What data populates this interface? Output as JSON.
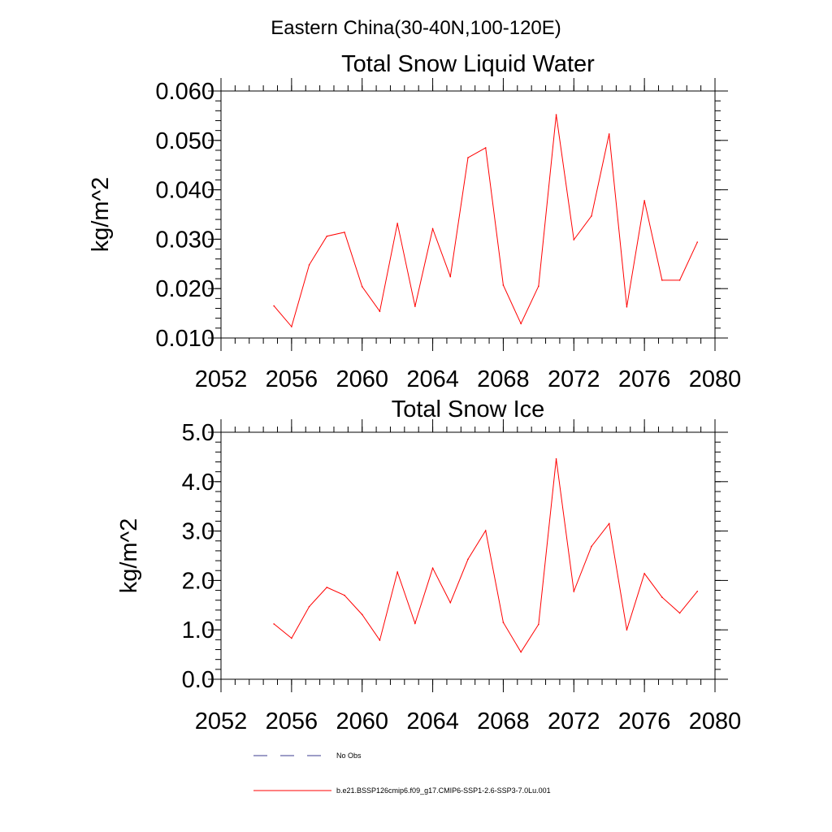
{
  "figure": {
    "main_title": "Eastern China(30-40N,100-120E)"
  },
  "colors": {
    "series_red": "#ff0000",
    "obs_blue": "#3b3b8f",
    "axis": "#000000"
  },
  "chart_data": [
    {
      "type": "line",
      "title": "Total Snow Liquid Water",
      "xlabel": "",
      "ylabel": "kg/m^2",
      "xlim": [
        2052,
        2080
      ],
      "ylim": [
        0.01,
        0.06
      ],
      "x_ticks": [
        2052,
        2056,
        2060,
        2064,
        2068,
        2072,
        2076,
        2080
      ],
      "x_tick_labels": [
        "2052",
        "2056",
        "2060",
        "2064",
        "2068",
        "2072",
        "2076",
        "2080"
      ],
      "y_ticks": [
        0.01,
        0.02,
        0.03,
        0.04,
        0.05,
        0.06
      ],
      "y_tick_labels": [
        "0.010",
        "0.020",
        "0.030",
        "0.040",
        "0.050",
        "0.060"
      ],
      "grid": false,
      "series": [
        {
          "name": "b.e21.BSSP126cmip6.f09_g17.CMIP6-SSP1-2.6-SSP3-7.0Lu.001",
          "color": "#ff0000",
          "x": [
            2055,
            2056,
            2057,
            2058,
            2059,
            2060,
            2061,
            2062,
            2063,
            2064,
            2065,
            2066,
            2067,
            2068,
            2069,
            2070,
            2071,
            2072,
            2073,
            2074,
            2075,
            2076,
            2077,
            2078,
            2079
          ],
          "y": [
            0.0165,
            0.0123,
            0.0248,
            0.0306,
            0.0314,
            0.0204,
            0.0154,
            0.0332,
            0.0164,
            0.0321,
            0.0224,
            0.0465,
            0.0485,
            0.0207,
            0.0129,
            0.0205,
            0.0552,
            0.0299,
            0.0347,
            0.0513,
            0.0163,
            0.0378,
            0.0217,
            0.0217,
            0.0294
          ]
        }
      ]
    },
    {
      "type": "line",
      "title": "Total Snow Ice",
      "xlabel": "",
      "ylabel": "kg/m^2",
      "xlim": [
        2052,
        2080
      ],
      "ylim": [
        0.0,
        5.0
      ],
      "x_ticks": [
        2052,
        2056,
        2060,
        2064,
        2068,
        2072,
        2076,
        2080
      ],
      "x_tick_labels": [
        "2052",
        "2056",
        "2060",
        "2064",
        "2068",
        "2072",
        "2076",
        "2080"
      ],
      "y_ticks": [
        0.0,
        1.0,
        2.0,
        3.0,
        4.0,
        5.0
      ],
      "y_tick_labels": [
        "0.0",
        "1.0",
        "2.0",
        "3.0",
        "4.0",
        "5.0"
      ],
      "grid": false,
      "series": [
        {
          "name": "b.e21.BSSP126cmip6.f09_g17.CMIP6-SSP1-2.6-SSP3-7.0Lu.001",
          "color": "#ff0000",
          "x": [
            2055,
            2056,
            2057,
            2058,
            2059,
            2060,
            2061,
            2062,
            2063,
            2064,
            2065,
            2066,
            2067,
            2068,
            2069,
            2070,
            2071,
            2072,
            2073,
            2074,
            2075,
            2076,
            2077,
            2078,
            2079
          ],
          "y": [
            1.12,
            0.83,
            1.47,
            1.86,
            1.7,
            1.31,
            0.79,
            2.17,
            1.13,
            2.25,
            1.55,
            2.43,
            3.01,
            1.15,
            0.55,
            1.11,
            4.46,
            1.78,
            2.69,
            3.15,
            1.0,
            2.14,
            1.66,
            1.34,
            1.78
          ]
        }
      ]
    }
  ],
  "legend": {
    "items": [
      {
        "label": "No Obs",
        "color": "#3b3b8f",
        "style": "dashed"
      },
      {
        "label": "b.e21.BSSP126cmip6.f09_g17.CMIP6-SSP1-2.6-SSP3-7.0Lu.001",
        "color": "#ff0000",
        "style": "solid"
      }
    ]
  }
}
